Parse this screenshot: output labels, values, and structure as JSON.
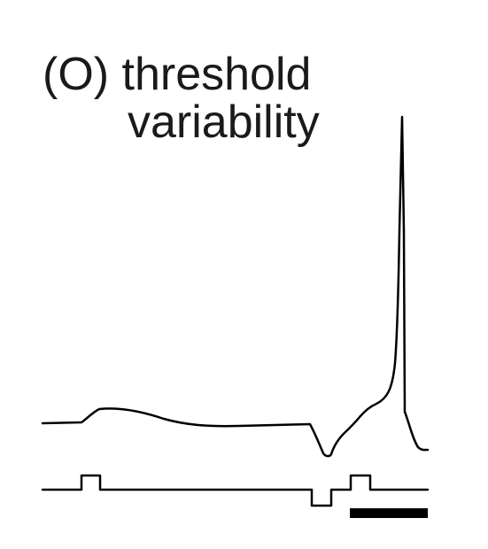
{
  "figure": {
    "title_line1": "(O) threshold",
    "title_line2": "variability"
  },
  "colors": {
    "background": "#ffffff",
    "trace": "#000000",
    "text": "#1a1a1a"
  },
  "traces": {
    "membrane_potential": {
      "name": "voltage-trace"
    },
    "stimulus": {
      "name": "stimulus-trace"
    },
    "scale_bar": {
      "name": "scale-bar"
    }
  }
}
